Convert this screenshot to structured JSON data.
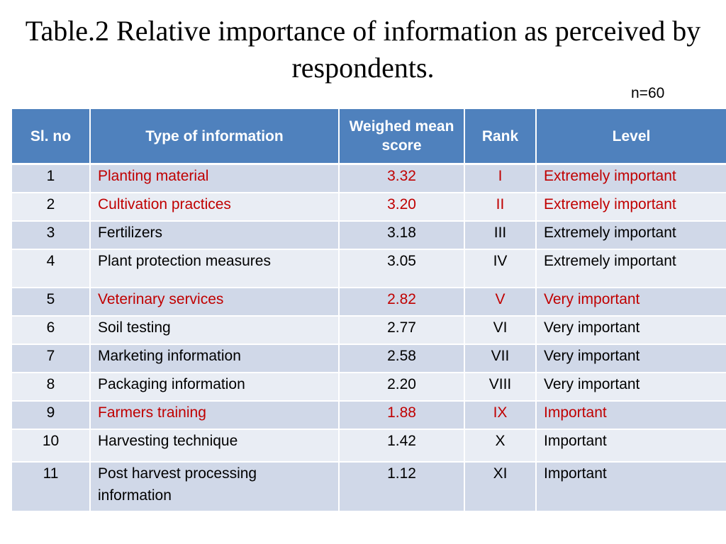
{
  "title": "Table.2 Relative importance of information as perceived by respondents.",
  "n_label": "n=60",
  "colors": {
    "header_bg": "#4f81bd",
    "row_odd": "#d0d8e8",
    "row_even": "#e9edf4",
    "highlight_text": "#c00000"
  },
  "table": {
    "headers": [
      "Sl. no",
      "Type of information",
      "Weighed mean score",
      "Rank",
      "Level"
    ],
    "rows": [
      {
        "no": "1",
        "type": "Planting material",
        "score": "3.32",
        "rank": "I",
        "level": "Extremely important",
        "highlight": true
      },
      {
        "no": "2",
        "type": "Cultivation practices",
        "score": "3.20",
        "rank": "II",
        "level": "Extremely important",
        "highlight": true
      },
      {
        "no": "3",
        "type": "Fertilizers",
        "score": "3.18",
        "rank": "III",
        "level": "Extremely important",
        "highlight": false
      },
      {
        "no": "4",
        "type": "Plant protection measures",
        "score": "3.05",
        "rank": "IV",
        "level": "Extremely important",
        "highlight": false
      },
      {
        "no": "5",
        "type": "Veterinary services",
        "score": "2.82",
        "rank": "V",
        "level": "Very important",
        "highlight": true
      },
      {
        "no": "6",
        "type": "Soil testing",
        "score": "2.77",
        "rank": "VI",
        "level": "Very important",
        "highlight": false
      },
      {
        "no": "7",
        "type": "Marketing information",
        "score": "2.58",
        "rank": "VII",
        "level": "Very important",
        "highlight": false
      },
      {
        "no": "8",
        "type": "Packaging information",
        "score": "2.20",
        "rank": "VIII",
        "level": "Very important",
        "highlight": false
      },
      {
        "no": "9",
        "type": "Farmers training",
        "score": "1.88",
        "rank": "IX",
        "level": " Important",
        "highlight": true
      },
      {
        "no": "10",
        "type": "Harvesting technique",
        "score": "1.42",
        "rank": "X",
        "level": " Important",
        "highlight": false
      },
      {
        "no": "11",
        "type": "Post harvest processing information",
        "score": "1.12",
        "rank": "XI",
        "level": " Important",
        "highlight": false
      }
    ]
  }
}
